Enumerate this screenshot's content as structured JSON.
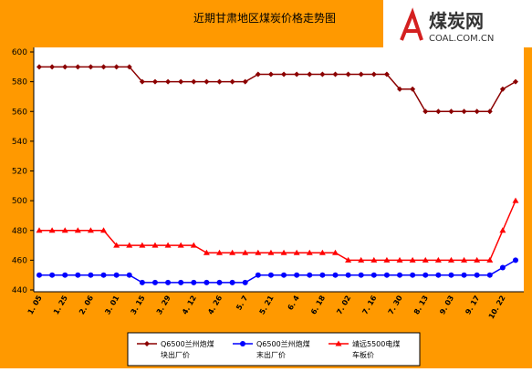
{
  "chart_data": {
    "type": "line",
    "title": "近期甘肃地区煤炭价格走势图",
    "logo": {
      "name": "煤炭网",
      "url": "COAL.COM.CN"
    },
    "categories": [
      "1. 05",
      null,
      "1. 25",
      null,
      "2. 06",
      null,
      "3. 01",
      null,
      "3. 15",
      null,
      "3. 29",
      null,
      "4. 12",
      null,
      "4. 26",
      null,
      "5. 7",
      null,
      "5. 21",
      null,
      "6. 4",
      null,
      "6. 18",
      null,
      "7. 02",
      null,
      "7. 16",
      null,
      "7. 30",
      null,
      "8. 13",
      null,
      "9. 03",
      null,
      "9. 17",
      null,
      "10. 22",
      null
    ],
    "ylim": [
      440,
      600
    ],
    "yticks": [
      440,
      460,
      480,
      500,
      520,
      540,
      560,
      580,
      600
    ],
    "grid": false,
    "legend": "bottom",
    "series": [
      {
        "name": "Q6500兰州炮煤块出厂价",
        "color": "#8b0000",
        "marker": "diamond",
        "values": [
          590,
          590,
          590,
          590,
          590,
          590,
          590,
          590,
          580,
          580,
          580,
          580,
          580,
          580,
          580,
          580,
          580,
          585,
          585,
          585,
          585,
          585,
          585,
          585,
          585,
          585,
          585,
          585,
          575,
          575,
          560,
          560,
          560,
          560,
          560,
          560,
          575,
          580
        ]
      },
      {
        "name": "Q6500兰州炮煤末出厂价",
        "color": "#0000ff",
        "marker": "circle",
        "values": [
          450,
          450,
          450,
          450,
          450,
          450,
          450,
          450,
          445,
          445,
          445,
          445,
          445,
          445,
          445,
          445,
          445,
          450,
          450,
          450,
          450,
          450,
          450,
          450,
          450,
          450,
          450,
          450,
          450,
          450,
          450,
          450,
          450,
          450,
          450,
          450,
          455,
          460
        ]
      },
      {
        "name": "靖远5500电煤车板价",
        "color": "#ff0000",
        "marker": "triangle",
        "values": [
          480,
          480,
          480,
          480,
          480,
          480,
          470,
          470,
          470,
          470,
          470,
          470,
          470,
          465,
          465,
          465,
          465,
          465,
          465,
          465,
          465,
          465,
          465,
          465,
          460,
          460,
          460,
          460,
          460,
          460,
          460,
          460,
          460,
          460,
          460,
          460,
          480,
          500
        ]
      }
    ]
  }
}
